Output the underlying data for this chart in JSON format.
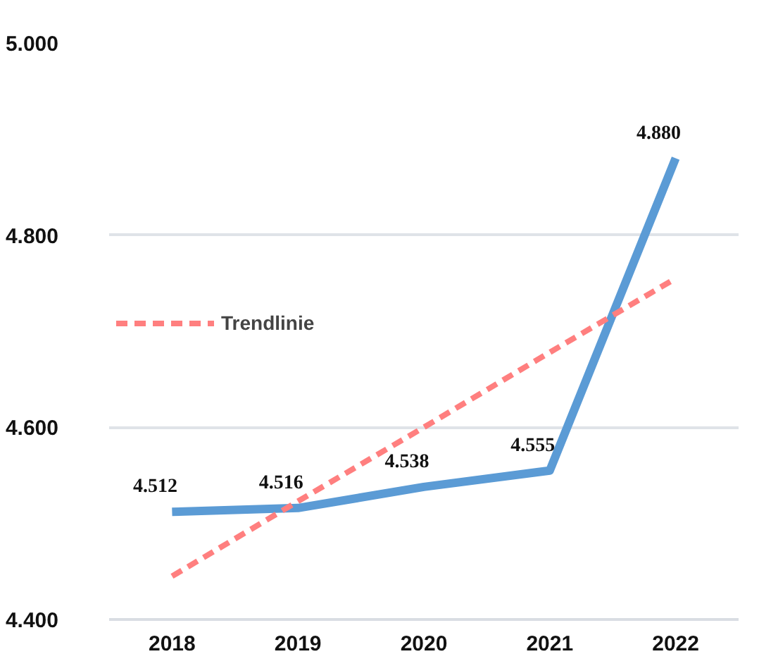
{
  "chart_data": {
    "type": "line",
    "categories": [
      "2018",
      "2019",
      "2020",
      "2021",
      "2022"
    ],
    "ylim": [
      4400,
      5000
    ],
    "yticks": [
      {
        "value": 4400,
        "label": "4.400"
      },
      {
        "value": 4600,
        "label": "4.600"
      },
      {
        "value": 4800,
        "label": "4.800"
      },
      {
        "value": 5000,
        "label": "5.000"
      }
    ],
    "grid": "y",
    "legend": "top left",
    "line_style": "solid",
    "marker": "none",
    "series": [
      {
        "color": "#5b9bd5",
        "values": [
          4512,
          4516,
          4538,
          4555,
          4880
        ],
        "value_labels": [
          "4.512",
          "4.516",
          "4.538",
          "4.555",
          "4.880"
        ]
      },
      {
        "name": "Trendlinie",
        "type": "line",
        "color": "#ff7f7f",
        "line_style": "dashed",
        "values": [
          4445,
          4523,
          4600,
          4678,
          4755
        ]
      }
    ]
  }
}
